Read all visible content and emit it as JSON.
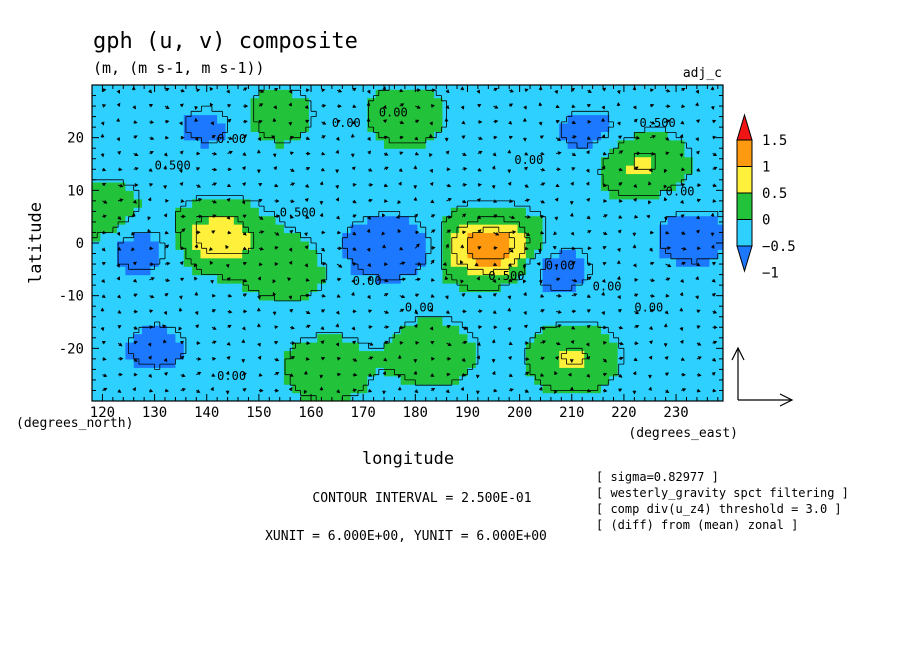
{
  "chart_data": {
    "type": "heatmap",
    "title": "gph (u, v) composite",
    "subtitle": "(m, (m s-1, m s-1))",
    "run_label": "adj_c",
    "xlabel": "longitude",
    "ylabel": "latitude",
    "x_unit_label": "(degrees_east)",
    "y_unit_label": "(degrees_north)",
    "xlim": [
      118,
      239
    ],
    "ylim": [
      -30,
      30
    ],
    "x_ticks": [
      120,
      130,
      140,
      150,
      160,
      170,
      180,
      190,
      200,
      210,
      220,
      230
    ],
    "y_ticks": [
      20,
      10,
      0,
      -10,
      -20
    ],
    "colorbar": {
      "levels": [
        -1,
        -0.5,
        0,
        0.5,
        1,
        1.5
      ],
      "labels": [
        "1.5",
        "1",
        "0.5",
        "0",
        "−0.5",
        "−1"
      ],
      "colors": [
        "#1c78ff",
        "#2ed0ff",
        "#22c33a",
        "#fff03c",
        "#ff9a10",
        "#f01414"
      ]
    },
    "contour_labels": [
      "0.00",
      "0.00",
      "0.00",
      "0.500",
      "0.500",
      "0.00",
      "0.00",
      "0.500",
      "0.00",
      "0.00",
      "0.00",
      "0.500",
      "0.00",
      "0.00",
      "0.00"
    ],
    "anomalies": [
      {
        "lon": 175,
        "lat": -1,
        "value": -1.25
      },
      {
        "lon": 194,
        "lat": -1,
        "value": 1.6
      },
      {
        "lon": 142,
        "lat": 1,
        "value": 1.05
      },
      {
        "lon": 127,
        "lat": -1,
        "value": -0.7
      },
      {
        "lon": 233,
        "lat": 1,
        "value": -0.8
      },
      {
        "lon": 207,
        "lat": -5,
        "value": -0.7
      },
      {
        "lon": 223,
        "lat": 15,
        "value": 0.75
      },
      {
        "lon": 213,
        "lat": 21,
        "value": -0.6
      },
      {
        "lon": 183,
        "lat": -21,
        "value": 0.6
      },
      {
        "lon": 210,
        "lat": -22,
        "value": 0.7
      },
      {
        "lon": 155,
        "lat": -5,
        "value": 0.55
      },
      {
        "lon": 153,
        "lat": 24,
        "value": 0.4
      },
      {
        "lon": 163,
        "lat": -24,
        "value": 0.55
      },
      {
        "lon": 130,
        "lat": -20,
        "value": -0.6
      },
      {
        "lon": 140,
        "lat": 22,
        "value": -0.5
      },
      {
        "lon": 178,
        "lat": 24,
        "value": 0.45
      },
      {
        "lon": 120,
        "lat": 5,
        "value": 0.6
      }
    ],
    "vector_reference": "arrow",
    "notes": {
      "contour_interval": "CONTOUR INTERVAL = 2.500E-01",
      "units": "XUNIT = 6.000E+00, YUNIT = 6.000E+00",
      "sigma": "[ sigma=0.82977 ]",
      "filtering": "[ westerly_gravity spct filtering ]",
      "threshold": "[ comp div(u_z4) threshold = 3.0 ]",
      "diff": "[ (diff) from (mean) zonal ]"
    }
  }
}
